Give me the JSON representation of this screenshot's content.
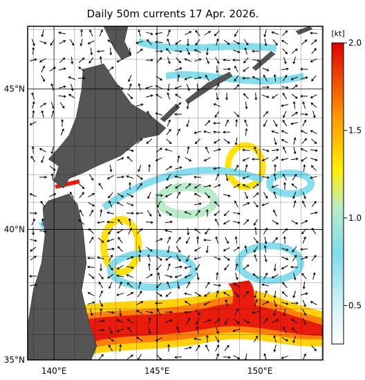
{
  "map": {
    "title": "Daily 50m currents 17 Apr. 2026.",
    "lon_range": [
      138.72,
      153.05
    ],
    "lat_range": [
      35,
      47.1
    ],
    "grid_step": 1,
    "lon_ticks": [
      {
        "value": 140,
        "label": "140°E"
      },
      {
        "value": 145,
        "label": "145°E"
      },
      {
        "value": 150,
        "label": "150°E"
      }
    ],
    "lat_ticks": [
      {
        "value": 45,
        "label": "45°N"
      },
      {
        "value": 40,
        "label": "40°N"
      },
      {
        "value": 35,
        "label": "35°N"
      }
    ],
    "colorbar": {
      "unit": "[kt]",
      "range": [
        0.28,
        2.0
      ],
      "ticks": [
        0.5,
        {
          "value": 1,
          "label": "1.0"
        },
        1.5,
        {
          "value": 2,
          "label": "2.0"
        }
      ]
    }
  }
}
